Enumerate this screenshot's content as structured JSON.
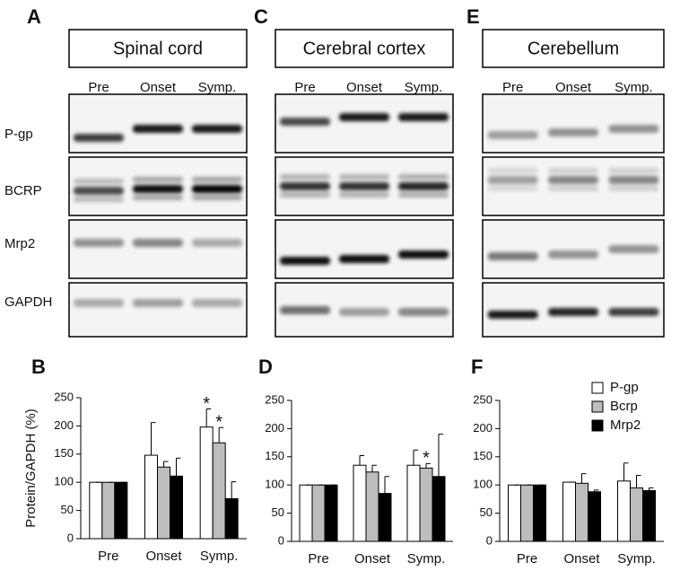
{
  "blots": [
    {
      "label": "A",
      "title": "Spinal cord",
      "lanes": [
        "Pre",
        "Onset",
        "Symp."
      ]
    },
    {
      "label": "C",
      "title": "Cerebral cortex",
      "lanes": [
        "Pre",
        "Onset",
        "Symp."
      ]
    },
    {
      "label": "E",
      "title": "Cerebellum",
      "lanes": [
        "Pre",
        "Onset",
        "Symp."
      ]
    }
  ],
  "rows": [
    "P-gp",
    "BCRP",
    "Mrp2",
    "GAPDH"
  ],
  "chart_data": [
    {
      "type": "bar",
      "label": "B",
      "ylabel": "Protein/GAPDH (%)",
      "categories": [
        "Pre",
        "Onset",
        "Symp."
      ],
      "ylim": [
        0,
        250
      ],
      "yticks": [
        0,
        50,
        100,
        150,
        200,
        250
      ],
      "series": [
        {
          "color": "#ffffff",
          "values": [
            100,
            148,
            198
          ],
          "errors": [
            0,
            58,
            32
          ],
          "markers": [
            null,
            null,
            "*"
          ]
        },
        {
          "color": "#bdbdbd",
          "values": [
            100,
            127,
            170
          ],
          "errors": [
            0,
            10,
            27
          ],
          "markers": [
            null,
            null,
            "*"
          ]
        },
        {
          "color": "#000000",
          "values": [
            100,
            111,
            71
          ],
          "errors": [
            0,
            32,
            30
          ],
          "markers": [
            null,
            null,
            null
          ]
        }
      ]
    },
    {
      "type": "bar",
      "label": "D",
      "categories": [
        "Pre",
        "Onset",
        "Symp."
      ],
      "ylim": [
        0,
        250
      ],
      "yticks": [
        0,
        50,
        100,
        150,
        200,
        250
      ],
      "series": [
        {
          "color": "#ffffff",
          "values": [
            100,
            135,
            135
          ],
          "errors": [
            0,
            17,
            27
          ],
          "markers": [
            null,
            null,
            null
          ]
        },
        {
          "color": "#bdbdbd",
          "values": [
            100,
            123,
            130
          ],
          "errors": [
            0,
            12,
            8
          ],
          "markers": [
            null,
            null,
            "*"
          ]
        },
        {
          "color": "#000000",
          "values": [
            100,
            85,
            115
          ],
          "errors": [
            0,
            30,
            75
          ],
          "markers": [
            null,
            null,
            null
          ]
        }
      ]
    },
    {
      "type": "bar",
      "label": "F",
      "categories": [
        "Pre",
        "Onset",
        "Symp."
      ],
      "ylim": [
        0,
        250
      ],
      "yticks": [
        0,
        50,
        100,
        150,
        200,
        250
      ],
      "legend": "upper right",
      "series": [
        {
          "name": "P-gp",
          "color": "#ffffff",
          "values": [
            100,
            105,
            107
          ],
          "errors": [
            0,
            0,
            32
          ],
          "markers": [
            null,
            null,
            null
          ]
        },
        {
          "name": "Bcrp",
          "color": "#bdbdbd",
          "values": [
            100,
            103,
            95
          ],
          "errors": [
            0,
            17,
            22
          ],
          "markers": [
            null,
            null,
            null
          ]
        },
        {
          "name": "Mrp2",
          "color": "#000000",
          "values": [
            100,
            88,
            90
          ],
          "errors": [
            0,
            3,
            5
          ],
          "markers": [
            null,
            null,
            null
          ]
        }
      ]
    }
  ]
}
